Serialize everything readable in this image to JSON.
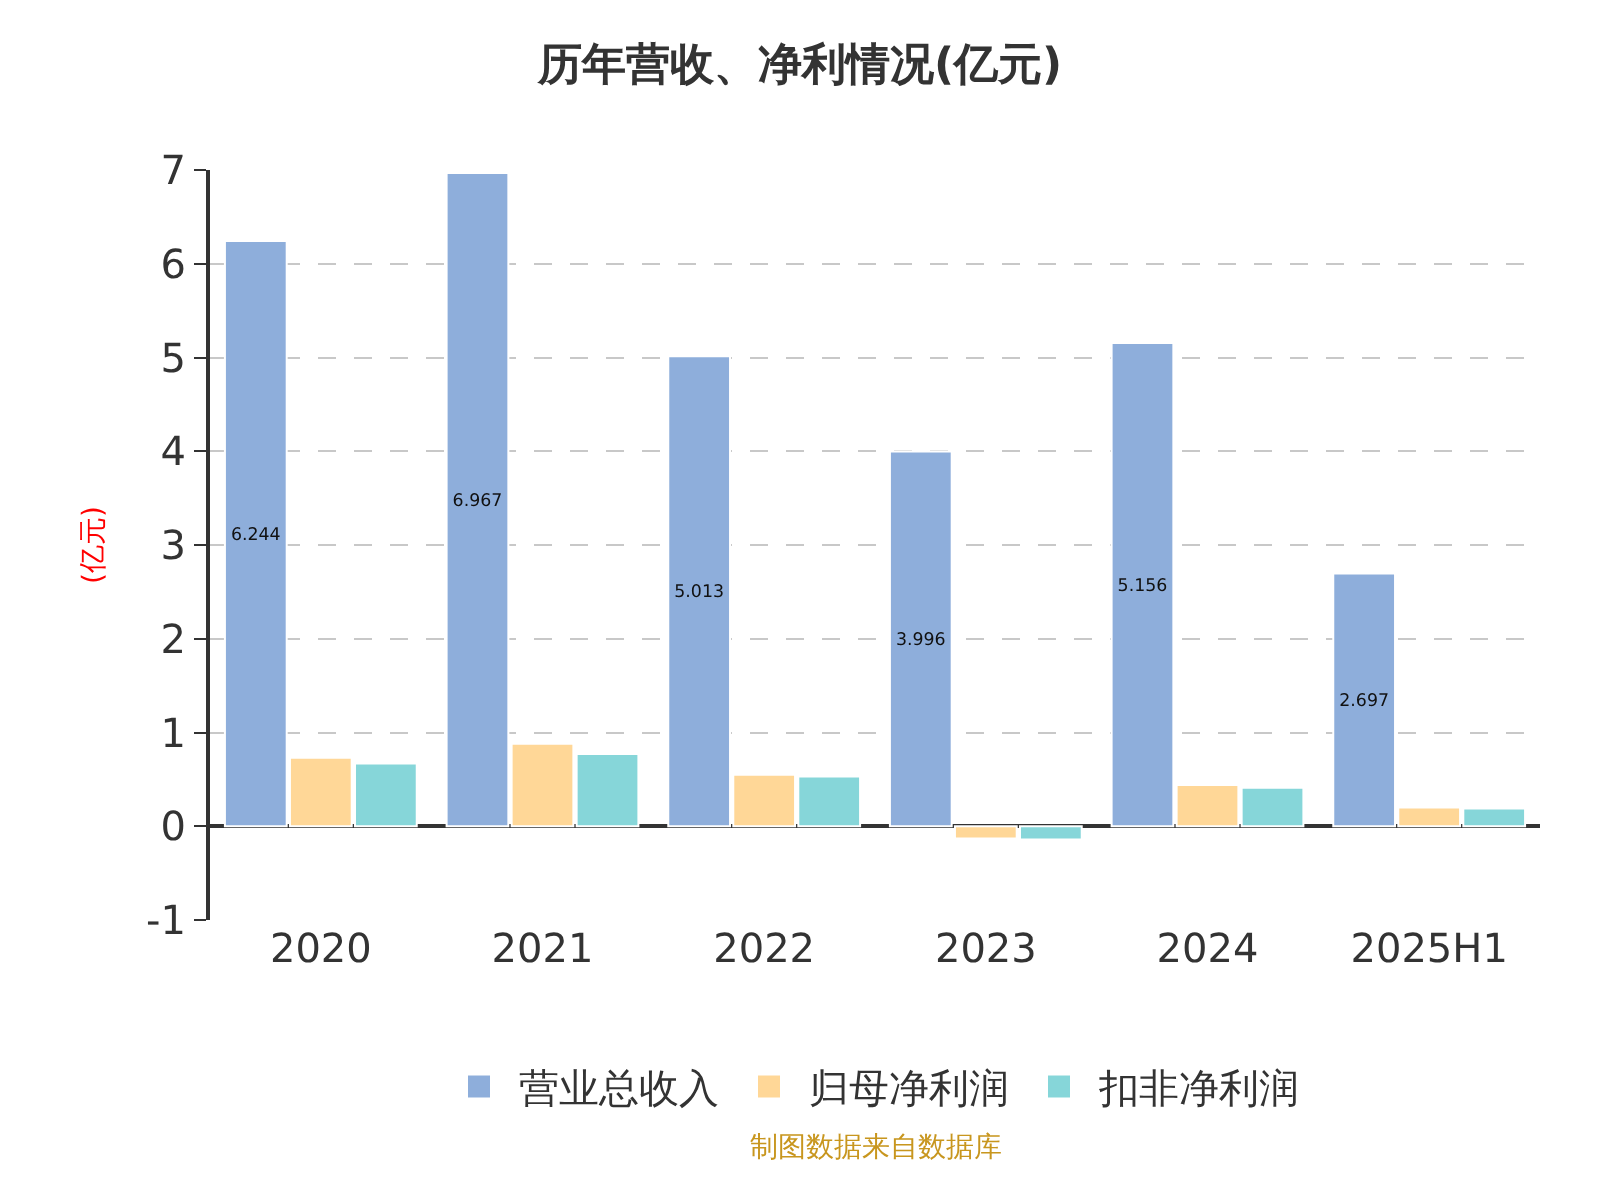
{
  "chart_data": {
    "type": "bar",
    "title": "历年营收、净利情况(亿元)",
    "ylabel": "(亿元)",
    "categories": [
      "2020",
      "2021",
      "2022",
      "2023",
      "2024",
      "2025H1"
    ],
    "series": [
      {
        "name": "营业总收入",
        "color": "#8eaedb",
        "values": [
          6.244,
          6.967,
          5.013,
          3.996,
          5.156,
          2.697
        ],
        "value_labels": [
          "6.244",
          "6.967",
          "5.013",
          "3.996",
          "5.156",
          "2.697"
        ]
      },
      {
        "name": "归母净利润",
        "color": "#ffd797",
        "values": [
          0.73,
          0.88,
          0.55,
          -0.13,
          0.44,
          0.2
        ]
      },
      {
        "name": "扣非净利润",
        "color": "#86d6d9",
        "values": [
          0.67,
          0.77,
          0.53,
          -0.14,
          0.41,
          0.19
        ]
      }
    ],
    "ylim": [
      -1,
      7
    ],
    "yticks": [
      -1,
      0,
      1,
      2,
      3,
      4,
      5,
      6,
      7
    ],
    "grid": "y",
    "legend": "bottom",
    "annotations": [
      "制图数据来自数据库"
    ]
  }
}
